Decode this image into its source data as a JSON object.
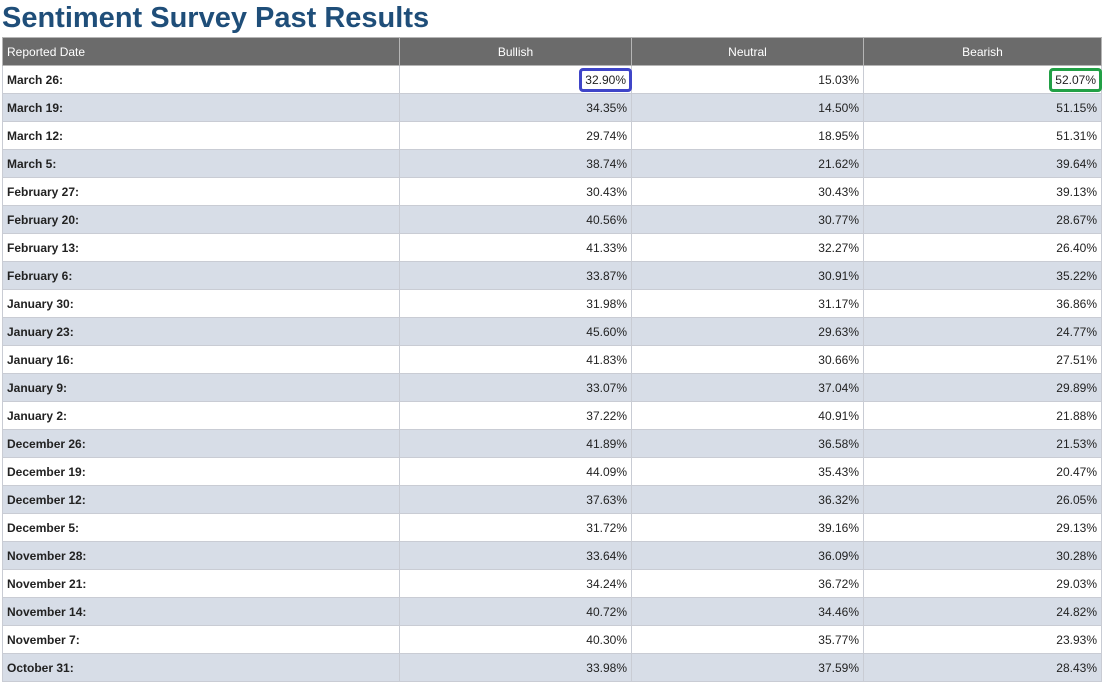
{
  "page": {
    "title": "Sentiment Survey Past Results"
  },
  "table": {
    "headers": [
      "Reported Date",
      "Bullish",
      "Neutral",
      "Bearish"
    ],
    "rows": [
      {
        "date": "March 26:",
        "bullish": "32.90%",
        "neutral": "15.03%",
        "bearish": "52.07%"
      },
      {
        "date": "March 19:",
        "bullish": "34.35%",
        "neutral": "14.50%",
        "bearish": "51.15%"
      },
      {
        "date": "March 12:",
        "bullish": "29.74%",
        "neutral": "18.95%",
        "bearish": "51.31%"
      },
      {
        "date": "March 5:",
        "bullish": "38.74%",
        "neutral": "21.62%",
        "bearish": "39.64%"
      },
      {
        "date": "February 27:",
        "bullish": "30.43%",
        "neutral": "30.43%",
        "bearish": "39.13%"
      },
      {
        "date": "February 20:",
        "bullish": "40.56%",
        "neutral": "30.77%",
        "bearish": "28.67%"
      },
      {
        "date": "February 13:",
        "bullish": "41.33%",
        "neutral": "32.27%",
        "bearish": "26.40%"
      },
      {
        "date": "February 6:",
        "bullish": "33.87%",
        "neutral": "30.91%",
        "bearish": "35.22%"
      },
      {
        "date": "January 30:",
        "bullish": "31.98%",
        "neutral": "31.17%",
        "bearish": "36.86%"
      },
      {
        "date": "January 23:",
        "bullish": "45.60%",
        "neutral": "29.63%",
        "bearish": "24.77%"
      },
      {
        "date": "January 16:",
        "bullish": "41.83%",
        "neutral": "30.66%",
        "bearish": "27.51%"
      },
      {
        "date": "January 9:",
        "bullish": "33.07%",
        "neutral": "37.04%",
        "bearish": "29.89%"
      },
      {
        "date": "January 2:",
        "bullish": "37.22%",
        "neutral": "40.91%",
        "bearish": "21.88%"
      },
      {
        "date": "December 26:",
        "bullish": "41.89%",
        "neutral": "36.58%",
        "bearish": "21.53%"
      },
      {
        "date": "December 19:",
        "bullish": "44.09%",
        "neutral": "35.43%",
        "bearish": "20.47%"
      },
      {
        "date": "December 12:",
        "bullish": "37.63%",
        "neutral": "36.32%",
        "bearish": "26.05%"
      },
      {
        "date": "December 5:",
        "bullish": "31.72%",
        "neutral": "39.16%",
        "bearish": "29.13%"
      },
      {
        "date": "November 28:",
        "bullish": "33.64%",
        "neutral": "36.09%",
        "bearish": "30.28%"
      },
      {
        "date": "November 21:",
        "bullish": "34.24%",
        "neutral": "36.72%",
        "bearish": "29.03%"
      },
      {
        "date": "November 14:",
        "bullish": "40.72%",
        "neutral": "34.46%",
        "bearish": "24.82%"
      },
      {
        "date": "November 7:",
        "bullish": "40.30%",
        "neutral": "35.77%",
        "bearish": "23.93%"
      },
      {
        "date": "October 31:",
        "bullish": "33.98%",
        "neutral": "37.59%",
        "bearish": "28.43%"
      }
    ]
  },
  "highlights": [
    {
      "row": 0,
      "column": "bullish",
      "color": "#3f45c8"
    },
    {
      "row": 0,
      "column": "bearish",
      "color": "#22a046"
    }
  ],
  "colors": {
    "title": "#1f4e79",
    "header_bg": "#6b6b6b",
    "row_alt_bg": "#d7dde7"
  }
}
